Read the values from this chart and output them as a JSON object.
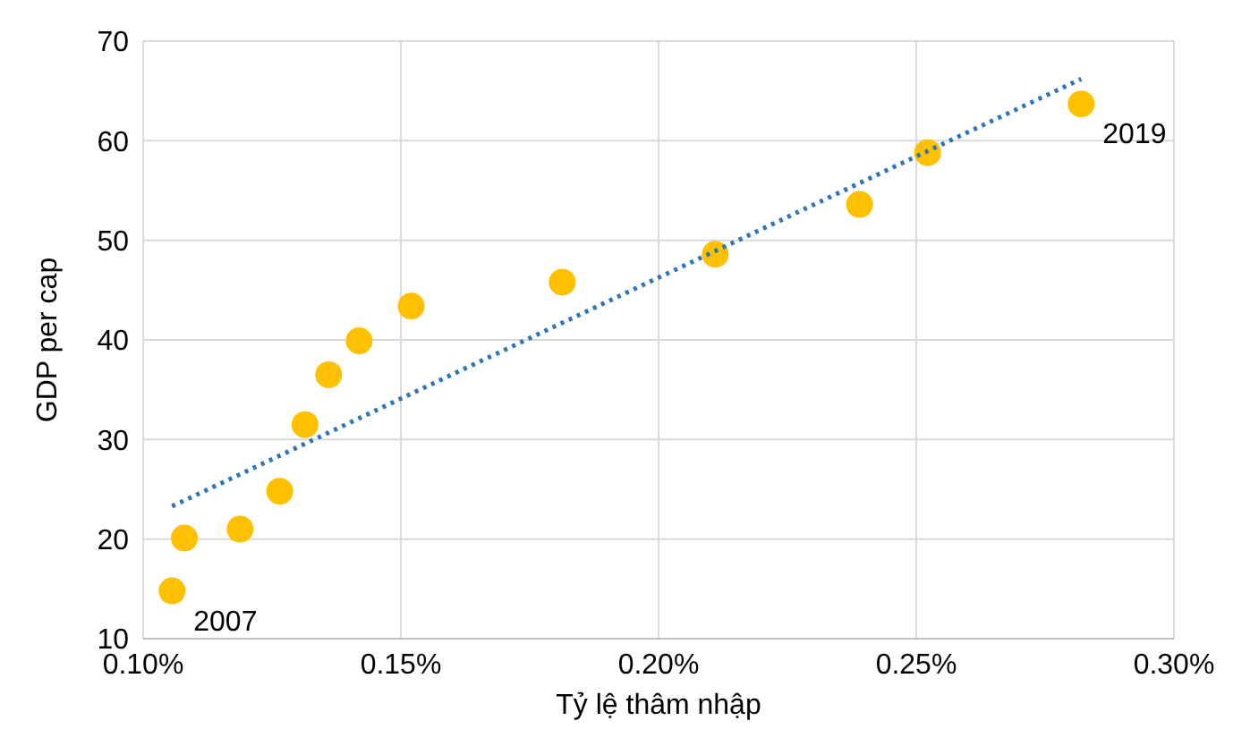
{
  "chart_data": {
    "type": "scatter",
    "xlabel": "Tỷ lệ thâm nhập",
    "ylabel": "GDP per cap",
    "xlim": [
      0.1,
      0.3
    ],
    "xticks": [
      {
        "value": 0.1,
        "label": "0.10%"
      },
      {
        "value": 0.15,
        "label": "0.15%"
      },
      {
        "value": 0.2,
        "label": "0.20%"
      },
      {
        "value": 0.25,
        "label": "0.25%"
      },
      {
        "value": 0.3,
        "label": "0.30%"
      }
    ],
    "ylim": [
      10,
      70
    ],
    "yticks": [
      10,
      20,
      30,
      40,
      50,
      60,
      70
    ],
    "grid": true,
    "series": [
      {
        "marker": "circle",
        "color": "#ffc000",
        "x": [
          0.1056,
          0.108,
          0.1188,
          0.1265,
          0.1314,
          0.136,
          0.1419,
          0.152,
          0.1813,
          0.211,
          0.239,
          0.2522,
          0.282
        ],
        "values": [
          14.8,
          20.1,
          21.0,
          24.8,
          31.5,
          36.5,
          39.9,
          43.4,
          45.8,
          48.6,
          53.6,
          58.8,
          63.7
        ]
      },
      {
        "type": "line",
        "color": "#2e75b6",
        "line_style": "dotted",
        "x": [
          0.1056,
          0.282
        ],
        "values": [
          23.3,
          66.2
        ]
      }
    ],
    "annotations": [
      {
        "text": "2007",
        "x": 0.1056,
        "y": 14.8
      },
      {
        "text": "2019",
        "x": 0.282,
        "y": 63.7
      }
    ]
  }
}
